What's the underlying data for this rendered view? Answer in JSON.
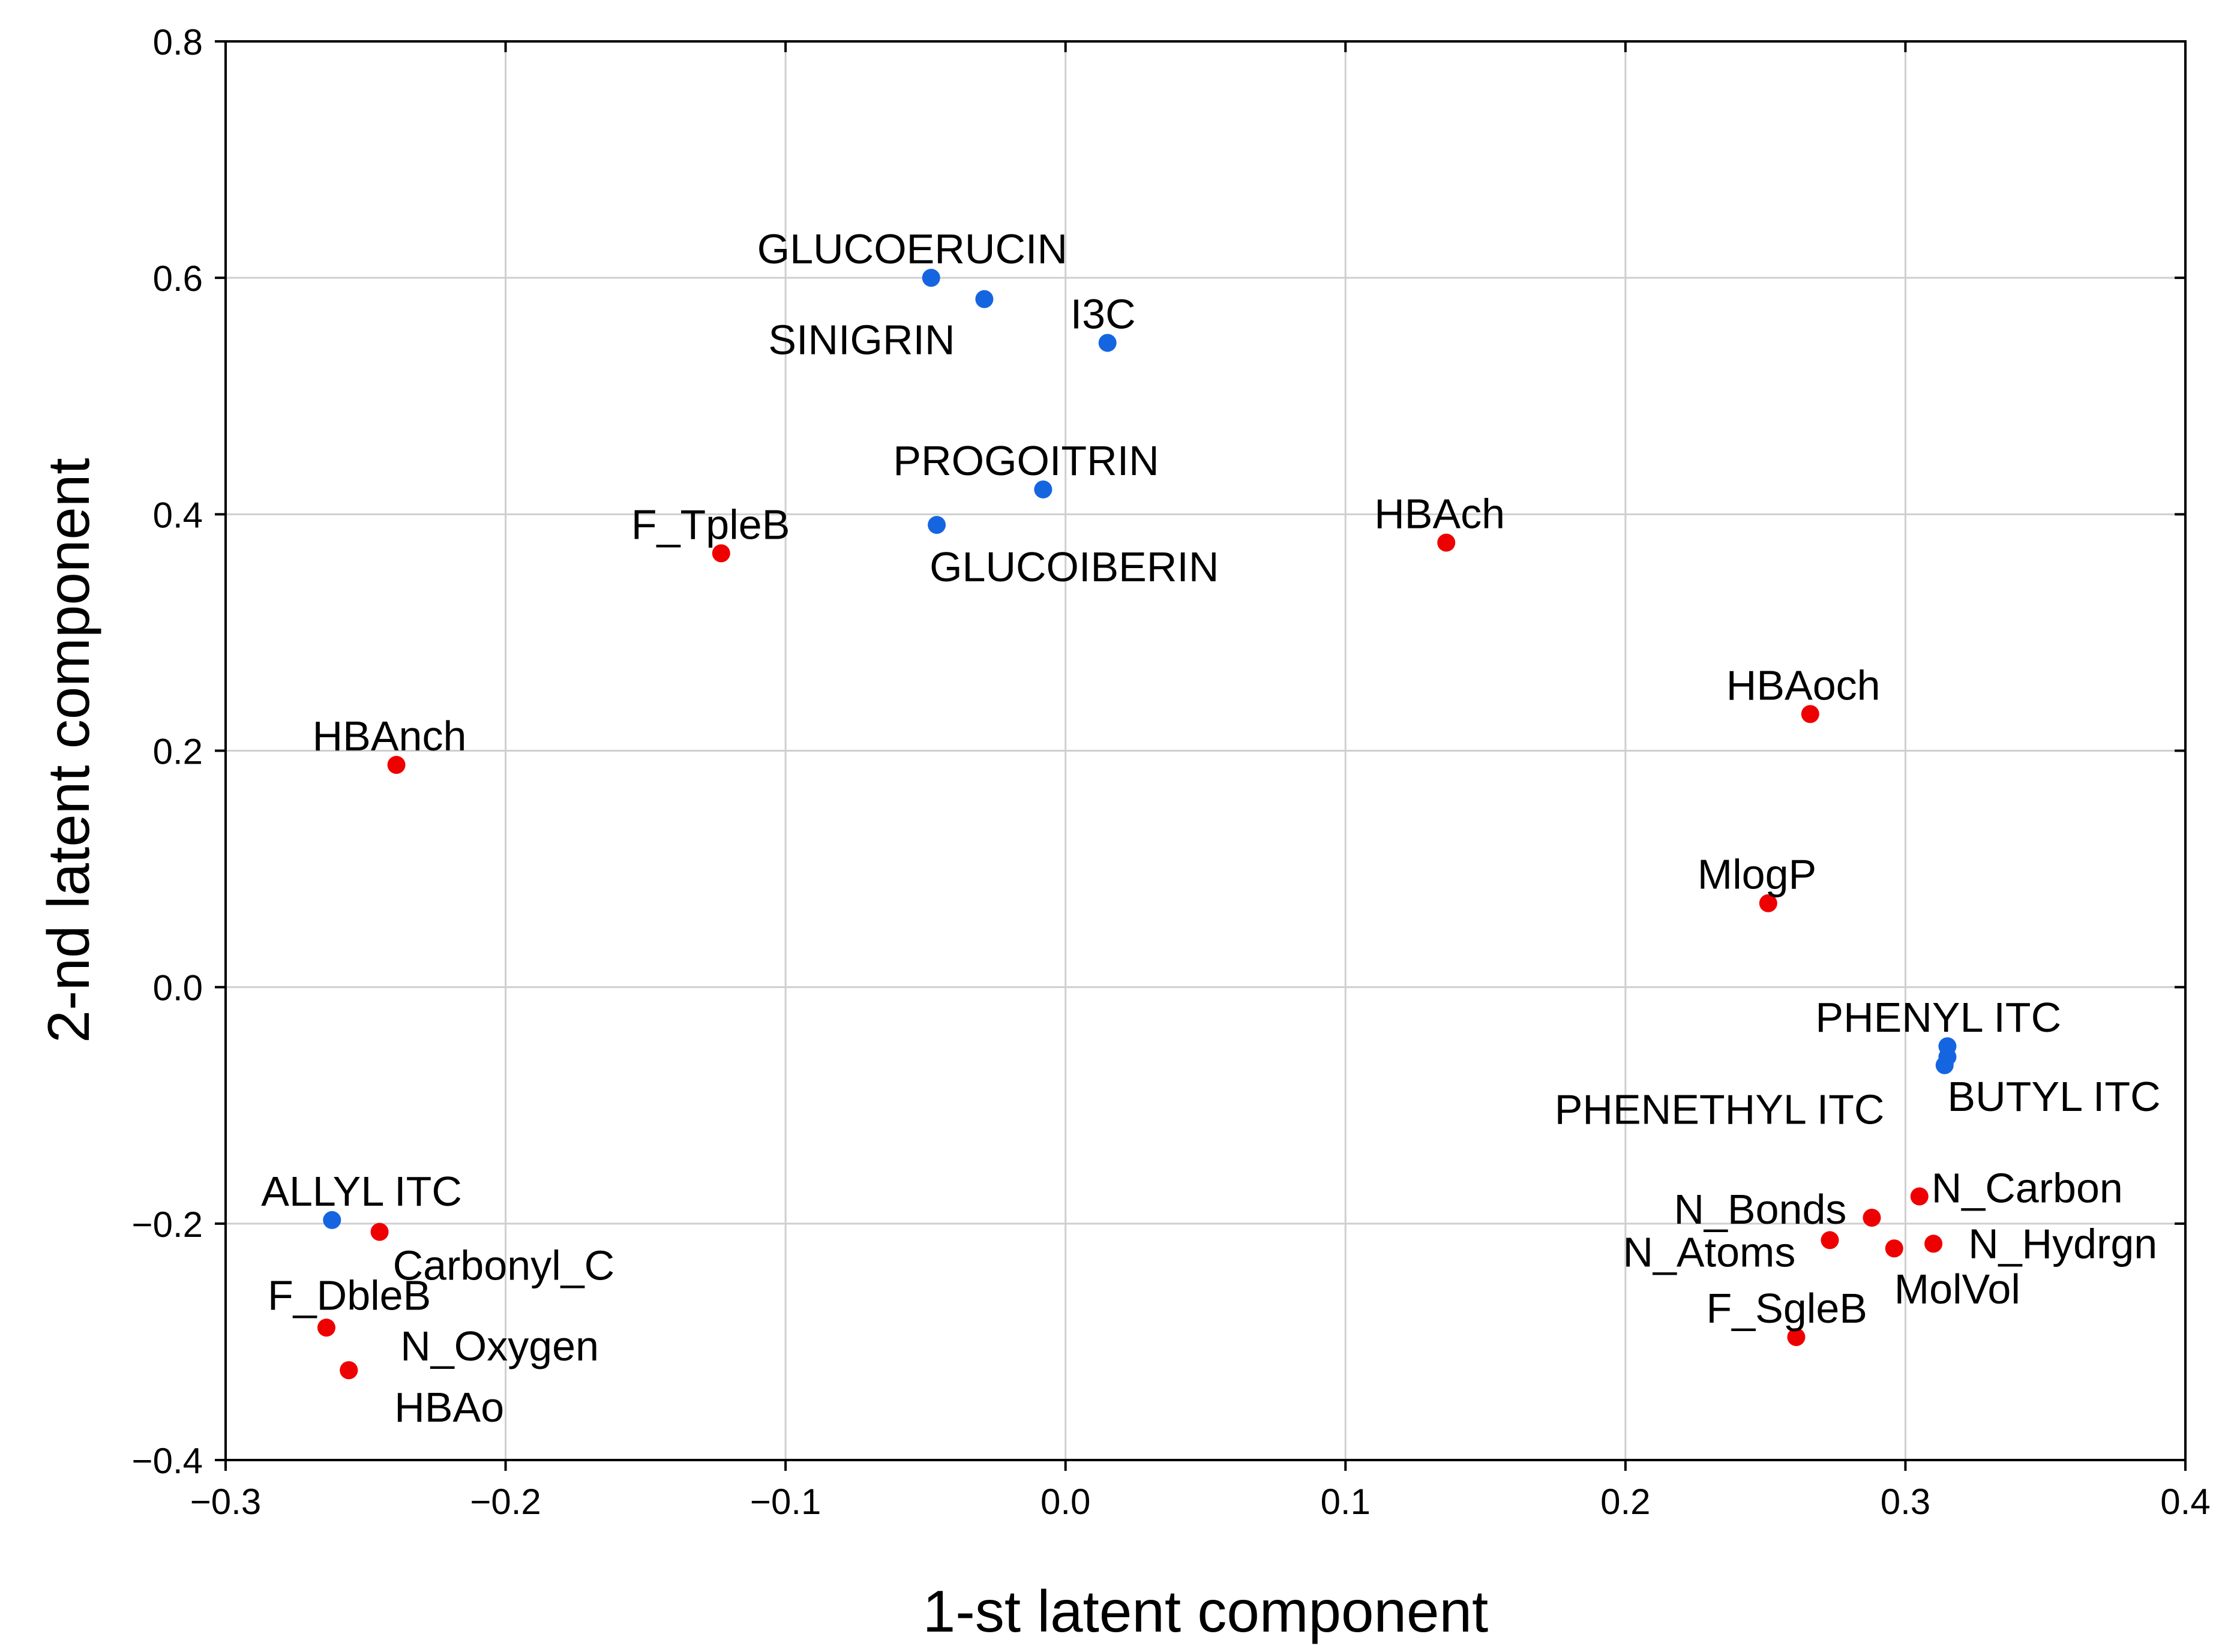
{
  "chart_data": {
    "type": "scatter",
    "xlabel": "1-st latent component",
    "ylabel": "2-nd latent component",
    "xlim": [
      -0.3,
      0.4
    ],
    "ylim": [
      -0.4,
      0.8
    ],
    "x_ticks": [
      -0.3,
      -0.2,
      -0.1,
      0.0,
      0.1,
      0.2,
      0.3,
      0.4
    ],
    "x_tick_labels": [
      "−0.3",
      "−0.2",
      "−0.1",
      "0.0",
      "0.1",
      "0.2",
      "0.3",
      "0.4"
    ],
    "y_ticks": [
      -0.4,
      -0.2,
      0.0,
      0.2,
      0.4,
      0.6,
      0.8
    ],
    "y_tick_labels": [
      "−0.4",
      "−0.2",
      "0.0",
      "0.2",
      "0.4",
      "0.6",
      "0.8"
    ],
    "grid": true,
    "colors": {
      "blue": "#1565e0",
      "red": "#ee0000"
    },
    "points": [
      {
        "label": "GLUCOERUCIN",
        "x": -0.048,
        "y": 0.6,
        "color": "blue"
      },
      {
        "label": "SINIGRIN",
        "x": -0.029,
        "y": 0.582,
        "color": "blue"
      },
      {
        "label": "I3C",
        "x": 0.015,
        "y": 0.545,
        "color": "blue"
      },
      {
        "label": "PROGOITRIN",
        "x": -0.008,
        "y": 0.421,
        "color": "blue"
      },
      {
        "label": "GLUCOIBERIN",
        "x": -0.046,
        "y": 0.391,
        "color": "blue"
      },
      {
        "label": "F_TpleB",
        "x": -0.123,
        "y": 0.367,
        "color": "red"
      },
      {
        "label": "HBAch",
        "x": 0.136,
        "y": 0.376,
        "color": "red"
      },
      {
        "label": "HBAoch",
        "x": 0.266,
        "y": 0.231,
        "color": "red"
      },
      {
        "label": "HBAnch",
        "x": -0.239,
        "y": 0.188,
        "color": "red"
      },
      {
        "label": "MlogP",
        "x": 0.251,
        "y": 0.071,
        "color": "red"
      },
      {
        "label": "PHENYL ITC",
        "x": 0.315,
        "y": -0.05,
        "color": "blue"
      },
      {
        "label": "BUTYL ITC",
        "x": 0.315,
        "y": -0.059,
        "color": "blue"
      },
      {
        "label": "PHENETHYL ITC",
        "x": 0.314,
        "y": -0.066,
        "color": "blue"
      },
      {
        "label": "ALLYL ITC",
        "x": -0.262,
        "y": -0.197,
        "color": "blue"
      },
      {
        "label": "Carbonyl_C",
        "x": -0.245,
        "y": -0.207,
        "color": "red"
      },
      {
        "label": "N_Carbon",
        "x": 0.305,
        "y": -0.177,
        "color": "red"
      },
      {
        "label": "N_Bonds",
        "x": 0.288,
        "y": -0.195,
        "color": "red"
      },
      {
        "label": "N_Atoms",
        "x": 0.273,
        "y": -0.214,
        "color": "red"
      },
      {
        "label": "N_Hydrgn",
        "x": 0.31,
        "y": -0.217,
        "color": "red"
      },
      {
        "label": "MolVol",
        "x": 0.296,
        "y": -0.221,
        "color": "red"
      },
      {
        "label": "F_DbleB",
        "x": -0.264,
        "y": -0.288,
        "color": "red"
      },
      {
        "label": "N_Oxygen",
        "x": -0.256,
        "y": -0.324,
        "color": "red"
      },
      {
        "label": "HBAo",
        "x": -0.256,
        "y": -0.324,
        "color": "red"
      },
      {
        "label": "F_SgleB",
        "x": 0.261,
        "y": -0.296,
        "color": "red"
      }
    ]
  }
}
